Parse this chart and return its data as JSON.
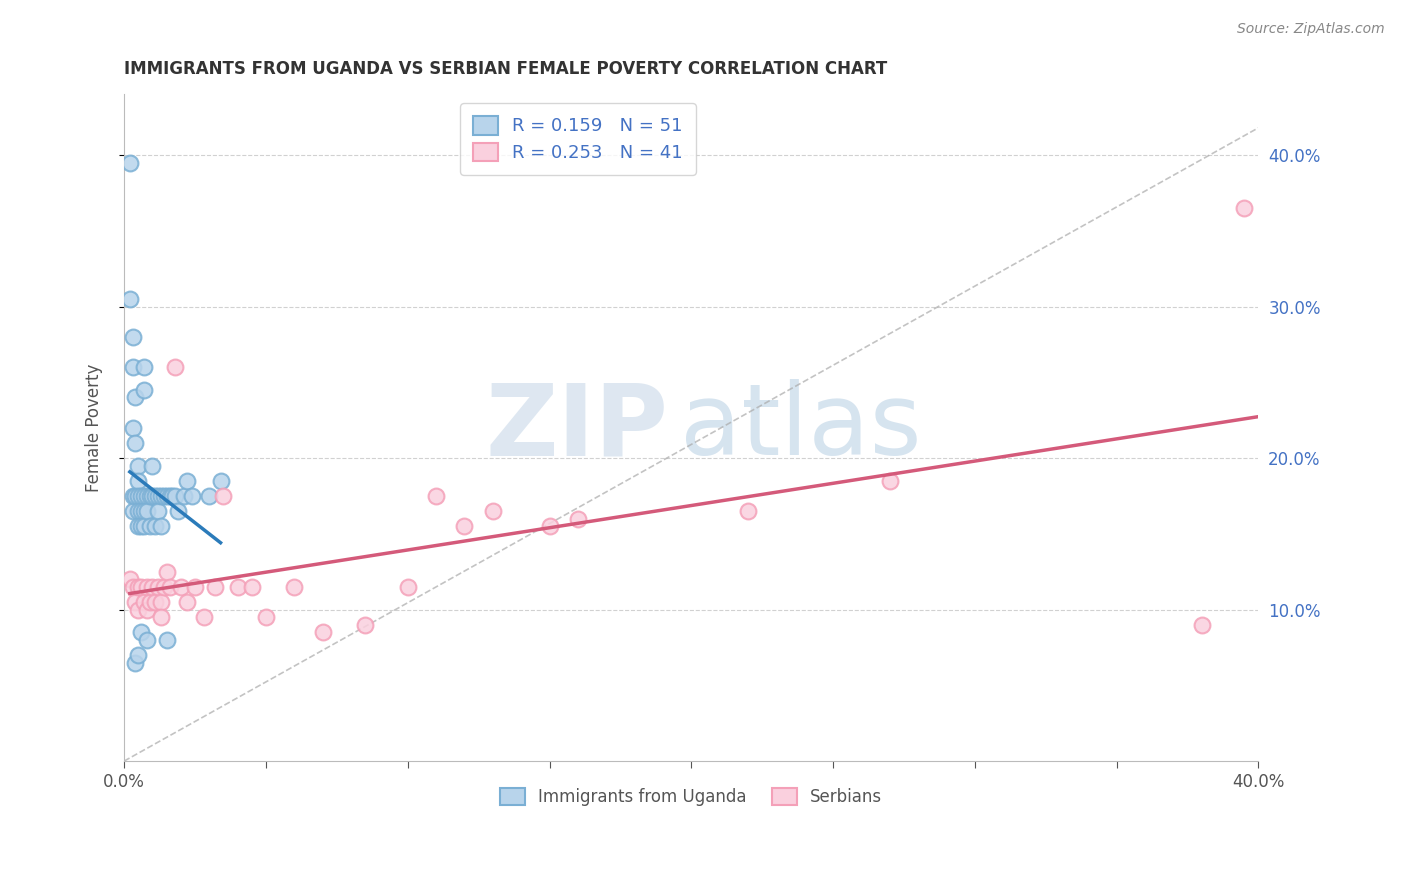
{
  "title": "IMMIGRANTS FROM UGANDA VS SERBIAN FEMALE POVERTY CORRELATION CHART",
  "source": "Source: ZipAtlas.com",
  "ylabel": "Female Poverty",
  "xlim": [
    0.0,
    0.4
  ],
  "ylim": [
    0.0,
    0.44
  ],
  "legend1_label": "R = 0.159   N = 51",
  "legend2_label": "R = 0.253   N = 41",
  "legend_bottom1": "Immigrants from Uganda",
  "legend_bottom2": "Serbians",
  "watermark_zip": "ZIP",
  "watermark_atlas": "atlas",
  "blue_color": "#7aafd4",
  "blue_fill": "#b8d4eb",
  "pink_color": "#f4a0b8",
  "pink_fill": "#fad0de",
  "line_blue": "#2b7bba",
  "line_pink": "#d45a7a",
  "ref_line_color": "#aaaaaa",
  "ytick_color": "#4472c4",
  "blue_x": [
    0.002,
    0.002,
    0.003,
    0.003,
    0.003,
    0.003,
    0.003,
    0.004,
    0.004,
    0.004,
    0.004,
    0.005,
    0.005,
    0.005,
    0.005,
    0.005,
    0.005,
    0.006,
    0.006,
    0.006,
    0.006,
    0.007,
    0.007,
    0.007,
    0.007,
    0.007,
    0.008,
    0.008,
    0.008,
    0.009,
    0.009,
    0.01,
    0.01,
    0.011,
    0.011,
    0.012,
    0.012,
    0.013,
    0.013,
    0.014,
    0.015,
    0.015,
    0.016,
    0.017,
    0.018,
    0.019,
    0.021,
    0.022,
    0.024,
    0.03,
    0.034
  ],
  "blue_y": [
    0.395,
    0.305,
    0.28,
    0.26,
    0.22,
    0.175,
    0.165,
    0.24,
    0.21,
    0.175,
    0.065,
    0.195,
    0.185,
    0.175,
    0.165,
    0.155,
    0.07,
    0.175,
    0.165,
    0.155,
    0.085,
    0.26,
    0.245,
    0.175,
    0.165,
    0.155,
    0.175,
    0.165,
    0.08,
    0.175,
    0.155,
    0.195,
    0.175,
    0.175,
    0.155,
    0.175,
    0.165,
    0.175,
    0.155,
    0.175,
    0.175,
    0.08,
    0.175,
    0.175,
    0.175,
    0.165,
    0.175,
    0.185,
    0.175,
    0.175,
    0.185
  ],
  "pink_x": [
    0.002,
    0.003,
    0.004,
    0.005,
    0.005,
    0.006,
    0.007,
    0.008,
    0.008,
    0.009,
    0.01,
    0.011,
    0.012,
    0.013,
    0.013,
    0.014,
    0.015,
    0.016,
    0.018,
    0.02,
    0.022,
    0.025,
    0.028,
    0.032,
    0.035,
    0.04,
    0.045,
    0.05,
    0.06,
    0.07,
    0.085,
    0.1,
    0.11,
    0.12,
    0.13,
    0.15,
    0.16,
    0.22,
    0.27,
    0.38,
    0.395
  ],
  "pink_y": [
    0.12,
    0.115,
    0.105,
    0.115,
    0.1,
    0.115,
    0.105,
    0.115,
    0.1,
    0.105,
    0.115,
    0.105,
    0.115,
    0.105,
    0.095,
    0.115,
    0.125,
    0.115,
    0.26,
    0.115,
    0.105,
    0.115,
    0.095,
    0.115,
    0.175,
    0.115,
    0.115,
    0.095,
    0.115,
    0.085,
    0.09,
    0.115,
    0.175,
    0.155,
    0.165,
    0.155,
    0.16,
    0.165,
    0.185,
    0.09,
    0.365
  ]
}
